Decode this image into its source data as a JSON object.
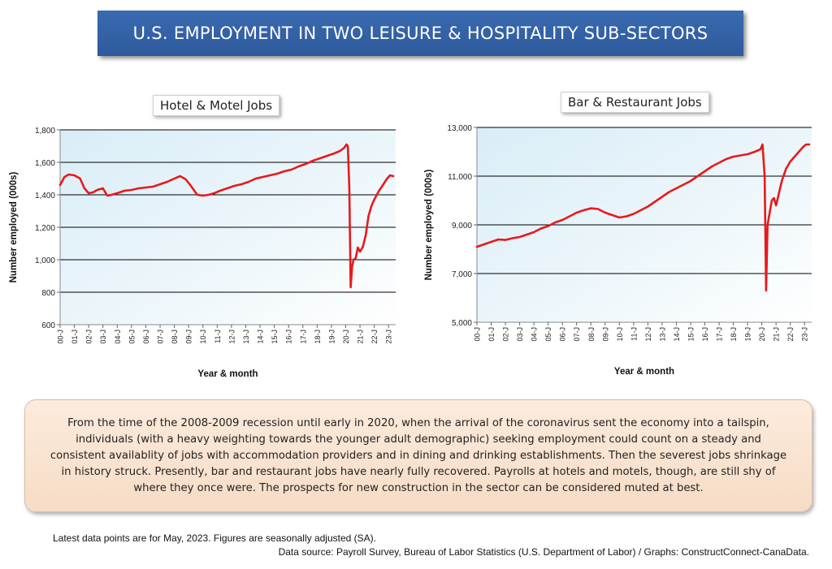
{
  "banner": {
    "title": "U.S. EMPLOYMENT IN TWO LEISURE & HOSPITALITY SUB-SECTORS"
  },
  "chart_data": [
    {
      "type": "line",
      "title": "Hotel & Motel Jobs",
      "ylabel": "Number employed (000s)",
      "xlabel": "Year & month",
      "ylim": [
        600,
        1800
      ],
      "yticks": [
        600,
        800,
        1000,
        1200,
        1400,
        1600,
        1800
      ],
      "ytick_labels": [
        "600",
        "800",
        "1,000",
        "1,200",
        "1,400",
        "1,600",
        "1,800"
      ],
      "x_tick_labels": [
        "00-J",
        "01-J",
        "02-J",
        "03-J",
        "04-J",
        "05-J",
        "06-J",
        "07-J",
        "08-J",
        "09-J",
        "10-J",
        "11-J",
        "12-J",
        "13-J",
        "14-J",
        "15-J",
        "16-J",
        "17-J",
        "18-J",
        "19-J",
        "20-J",
        "21-J",
        "22-J",
        "23-J"
      ],
      "line_color": "#e8191c",
      "series": [
        {
          "name": "Hotel & Motel",
          "x": [
            2000.0,
            2000.3,
            2000.6,
            2001.0,
            2001.4,
            2001.7,
            2002.0,
            2002.3,
            2002.6,
            2003.0,
            2003.3,
            2003.6,
            2004.0,
            2004.5,
            2005.0,
            2005.5,
            2006.0,
            2006.5,
            2007.0,
            2007.5,
            2008.0,
            2008.4,
            2008.8,
            2009.2,
            2009.6,
            2010.0,
            2010.4,
            2010.8,
            2011.2,
            2011.7,
            2012.2,
            2012.7,
            2013.2,
            2013.7,
            2014.2,
            2014.7,
            2015.2,
            2015.7,
            2016.2,
            2016.7,
            2017.2,
            2017.7,
            2018.2,
            2018.7,
            2019.2,
            2019.6,
            2019.9,
            2020.05,
            2020.15,
            2020.25,
            2020.35,
            2020.45,
            2020.55,
            2020.7,
            2020.85,
            2021.0,
            2021.2,
            2021.4,
            2021.6,
            2021.8,
            2022.0,
            2022.3,
            2022.6,
            2022.9,
            2023.1,
            2023.33
          ],
          "values": [
            1460,
            1510,
            1525,
            1520,
            1500,
            1440,
            1410,
            1415,
            1430,
            1440,
            1395,
            1400,
            1410,
            1425,
            1430,
            1440,
            1445,
            1450,
            1465,
            1480,
            1500,
            1515,
            1495,
            1450,
            1400,
            1395,
            1400,
            1410,
            1425,
            1440,
            1455,
            1465,
            1480,
            1500,
            1510,
            1520,
            1530,
            1545,
            1555,
            1575,
            1590,
            1610,
            1625,
            1640,
            1655,
            1670,
            1690,
            1710,
            1700,
            1450,
            830,
            960,
            1000,
            1010,
            1075,
            1050,
            1080,
            1150,
            1270,
            1330,
            1370,
            1420,
            1460,
            1500,
            1520,
            1515
          ]
        }
      ]
    },
    {
      "type": "line",
      "title": "Bar & Restaurant Jobs",
      "ylabel": "Number employed (000s)",
      "xlabel": "Year & month",
      "ylim": [
        5000,
        13000
      ],
      "yticks": [
        5000,
        7000,
        9000,
        11000,
        13000
      ],
      "ytick_labels": [
        "5,000",
        "7,000",
        "9,000",
        "11,000",
        "13,000"
      ],
      "x_tick_labels": [
        "00-J",
        "01-J",
        "02-J",
        "03-J",
        "04-J",
        "05-J",
        "06-J",
        "07-J",
        "08-J",
        "09-J",
        "10-J",
        "11-J",
        "12-J",
        "13-J",
        "14-J",
        "15-J",
        "16-J",
        "17-J",
        "18-J",
        "19-J",
        "20-J",
        "21-J",
        "22-J",
        "23-J"
      ],
      "line_color": "#e8191c",
      "series": [
        {
          "name": "Bar & Restaurant",
          "x": [
            2000.0,
            2000.5,
            2001.0,
            2001.5,
            2002.0,
            2002.5,
            2003.0,
            2003.5,
            2004.0,
            2004.5,
            2005.0,
            2005.5,
            2006.0,
            2006.5,
            2007.0,
            2007.5,
            2008.0,
            2008.5,
            2009.0,
            2009.5,
            2010.0,
            2010.5,
            2011.0,
            2011.5,
            2012.0,
            2012.5,
            2013.0,
            2013.5,
            2014.0,
            2014.5,
            2015.0,
            2015.5,
            2016.0,
            2016.5,
            2017.0,
            2017.5,
            2018.0,
            2018.5,
            2019.0,
            2019.5,
            2019.9,
            2020.05,
            2020.2,
            2020.3,
            2020.4,
            2020.55,
            2020.7,
            2020.85,
            2021.0,
            2021.2,
            2021.4,
            2021.7,
            2022.0,
            2022.3,
            2022.6,
            2022.9,
            2023.1,
            2023.33
          ],
          "values": [
            8100,
            8200,
            8300,
            8400,
            8380,
            8450,
            8500,
            8600,
            8700,
            8850,
            8950,
            9100,
            9200,
            9350,
            9500,
            9600,
            9680,
            9650,
            9500,
            9400,
            9300,
            9350,
            9450,
            9600,
            9750,
            9950,
            10150,
            10350,
            10500,
            10650,
            10800,
            11000,
            11200,
            11400,
            11550,
            11700,
            11800,
            11850,
            11900,
            12000,
            12100,
            12300,
            11000,
            6300,
            9000,
            9500,
            10000,
            10100,
            9800,
            10300,
            10800,
            11300,
            11600,
            11800,
            12000,
            12200,
            12300,
            12300
          ]
        }
      ]
    }
  ],
  "note": {
    "text": "From the time of the 2008-2009 recession until early in 2020, when the arrival of the coronavirus sent the economy into a tailspin, individuals (with a heavy weighting towards the younger adult demographic) seeking employment could count on a steady and consistent availablity of jobs with accommodation providers and in dining and drinking establishments. Then the severest jobs shrinkage in history struck. Presently, bar and restaurant jobs have nearly fully recovered. Payrolls at hotels and motels, though, are still shy of where they once were. The prospects for new construction in the sector can be considered muted at best."
  },
  "footer": {
    "latest": "Latest data points are for May, 2023. Figures are seasonally adjusted (SA).",
    "source": "Data source: Payroll Survey, Bureau of Labor Statistics (U.S. Department of Labor) / Graphs: ConstructConnect-CanaData."
  }
}
